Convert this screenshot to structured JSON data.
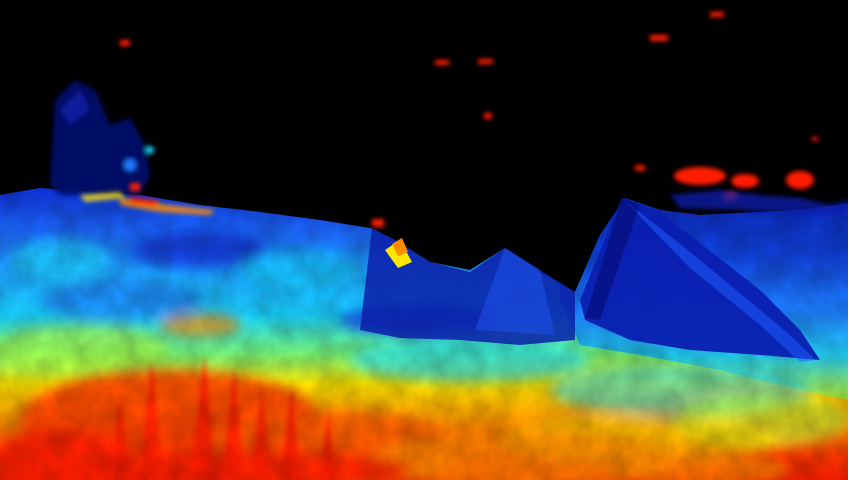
{
  "image": {
    "kind": "depth-colormap",
    "colormap": "jet",
    "background": "#000000",
    "palette": {
      "far": "#00007a",
      "far_mid": "#0a28d8",
      "mid": "#1e78ff",
      "cyan": "#19d2ff",
      "green_yellow": "#b4ff3c",
      "yellow": "#ffe600",
      "orange": "#ff8c00",
      "near": "#ff1e00",
      "speckle": "#ff1a00"
    }
  }
}
